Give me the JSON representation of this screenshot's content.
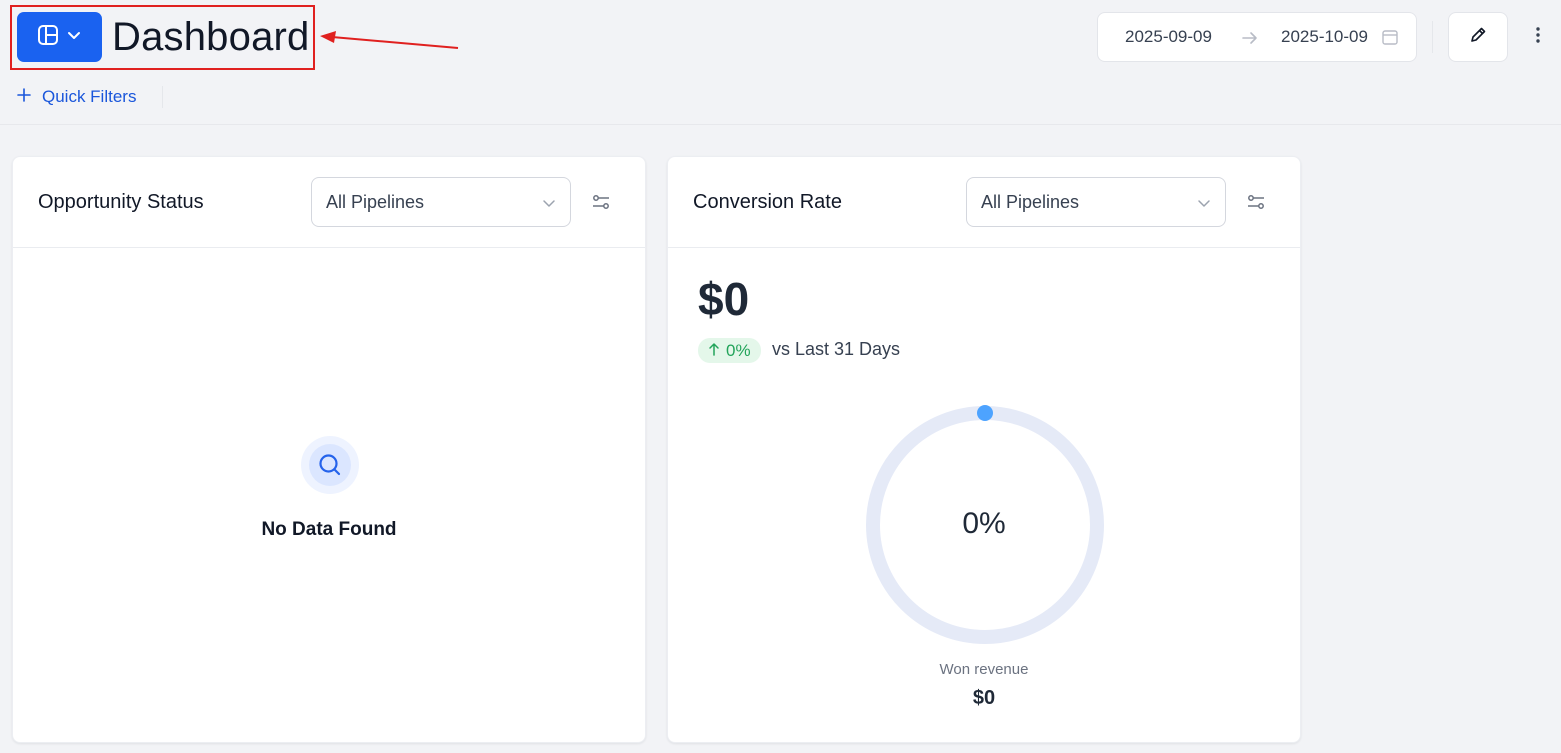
{
  "header": {
    "title": "Dashboard",
    "date_start": "2025-09-09",
    "date_end": "2025-10-09",
    "quick_filters_label": "Quick Filters",
    "quick_filters_icon": "plus-icon",
    "layout_icon": "layout-icon",
    "edit_icon": "pencil-icon",
    "more_icon": "vertical-dots-icon",
    "date_arrow_icon": "arrow-right-icon",
    "calendar_icon": "calendar-icon"
  },
  "annotation": {
    "color": "#e0201f"
  },
  "opportunity_status": {
    "title": "Opportunity Status",
    "pipeline_select": "All Pipelines",
    "empty_icon": "search-icon",
    "empty_text": "No Data Found"
  },
  "conversion_rate": {
    "title": "Conversion Rate",
    "pipeline_select": "All Pipelines",
    "value": "$0",
    "change": "0%",
    "change_direction_icon": "arrow-up-icon",
    "comparison_text": "vs Last 31 Days",
    "gauge_percent": 0,
    "gauge_label": "0%",
    "won_revenue_label": "Won revenue",
    "won_revenue_value": "$0"
  },
  "colors": {
    "primary": "#1a62f0",
    "link": "#1a56db",
    "success": "#22a45a",
    "gauge_track": "#e5eaf7",
    "gauge_marker": "#4da3ff"
  }
}
